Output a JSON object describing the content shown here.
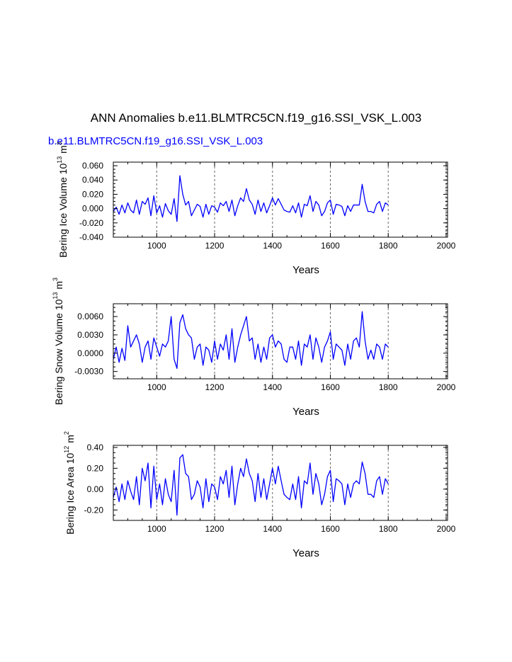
{
  "figure": {
    "title": "ANN Anomalies b.e11.BLMTRC5CN.f19_g16.SSI_VSK_L.003",
    "subtitle": "b.e11.BLMTRC5CN.f19_g16.SSI_VSK_L.003",
    "line_color": "#0000ff",
    "grid_color": "#666666",
    "reference_years": [
      1000,
      1200,
      1400,
      1600,
      1800,
      2000
    ]
  },
  "chart_data": [
    {
      "type": "line",
      "id": "ice-volume",
      "ylabel": "Bering Ice Volume 10",
      "ylabel_exp": "13",
      "ylabel_unit": "m",
      "ylabel_unit_exp": "3",
      "xlabel": "Years",
      "xlim": [
        850,
        2005
      ],
      "ylim": [
        -0.04,
        0.065
      ],
      "xticks": [
        1000,
        1200,
        1400,
        1600,
        1800,
        2000
      ],
      "xtick_labels": [
        "1000",
        "1200",
        "1400",
        "1600",
        "1800",
        "2000"
      ],
      "yticks": [
        -0.04,
        -0.02,
        0.0,
        0.02,
        0.04,
        0.06
      ],
      "ytick_labels": [
        "-0.040",
        "-0.020",
        "0.000",
        "0.020",
        "0.040",
        "0.060"
      ],
      "series": [
        {
          "name": "Bering Ice Volume",
          "x_start": 850,
          "x_step": 10,
          "values": [
            -0.004,
            0.002,
            -0.008,
            0.005,
            -0.006,
            0.008,
            -0.002,
            -0.006,
            0.012,
            -0.008,
            0.01,
            0.006,
            0.015,
            -0.01,
            0.018,
            -0.006,
            0.004,
            -0.012,
            0.007,
            -0.003,
            -0.008,
            0.014,
            -0.018,
            0.046,
            0.02,
            0.005,
            0.01,
            -0.01,
            -0.002,
            0.006,
            0.003,
            -0.012,
            0.006,
            -0.008,
            0.004,
            0.002,
            -0.005,
            0.008,
            0.004,
            0.01,
            -0.004,
            0.012,
            -0.01,
            0.004,
            0.015,
            0.01,
            0.028,
            0.012,
            0.006,
            -0.008,
            0.012,
            -0.004,
            0.008,
            -0.006,
            0.004,
            0.015,
            0.005,
            0.014,
            0.006,
            -0.002,
            -0.004,
            -0.005,
            0.004,
            -0.006,
            0.008,
            -0.012,
            0.006,
            0.004,
            0.018,
            -0.004,
            0.01,
            0.005,
            -0.01,
            -0.004,
            0.008,
            0.012,
            -0.008,
            0.006,
            0.005,
            0.003,
            -0.01,
            0.004,
            -0.004,
            0.005,
            0.005,
            0.005,
            0.034,
            0.01,
            -0.004,
            -0.004,
            -0.006,
            0.006,
            0.01,
            -0.004,
            0.008,
            0.005
          ]
        }
      ]
    },
    {
      "type": "line",
      "id": "snow-volume",
      "ylabel": "Bering Snow Volume 10",
      "ylabel_exp": "13",
      "ylabel_unit": "m",
      "ylabel_unit_exp": "3",
      "xlabel": "Years",
      "xlim": [
        850,
        2005
      ],
      "ylim": [
        -0.0042,
        0.0081
      ],
      "xticks": [
        1000,
        1200,
        1400,
        1600,
        1800,
        2000
      ],
      "xtick_labels": [
        "1000",
        "1200",
        "1400",
        "1600",
        "1800",
        "2000"
      ],
      "yticks": [
        -0.003,
        0.0,
        0.003,
        0.006
      ],
      "ytick_labels": [
        "-0.0030",
        "0.0000",
        "0.0030",
        "0.0060"
      ],
      "series": [
        {
          "name": "Bering Snow Volume",
          "x_start": 850,
          "x_step": 10,
          "values": [
            -0.001,
            0.001,
            -0.0015,
            0.0008,
            -0.0012,
            0.0045,
            0.001,
            0.002,
            0.003,
            0.0015,
            -0.0015,
            0.001,
            0.002,
            -0.001,
            0.0025,
            0.001,
            -0.0005,
            0.0015,
            0.001,
            0.002,
            0.006,
            -0.001,
            -0.0025,
            0.005,
            0.0063,
            0.004,
            0.003,
            0.0025,
            -0.001,
            0.001,
            0.0015,
            -0.002,
            0.001,
            0.0005,
            -0.0015,
            0.002,
            -0.001,
            0.0015,
            0.0005,
            0.003,
            -0.001,
            0.004,
            -0.0015,
            0.001,
            0.003,
            0.0045,
            0.006,
            0.002,
            0.0025,
            -0.001,
            0.0015,
            -0.0015,
            0.001,
            -0.001,
            0.0025,
            0.003,
            0.001,
            0.002,
            0.0015,
            -0.001,
            -0.0015,
            0.001,
            0.001,
            -0.001,
            0.002,
            -0.002,
            0.0015,
            0.001,
            0.003,
            -0.001,
            0.0025,
            0.001,
            -0.0015,
            0.001,
            0.002,
            0.0035,
            -0.001,
            0.0015,
            0.001,
            0.0005,
            -0.002,
            0.0015,
            -0.001,
            0.002,
            0.0025,
            0.001,
            0.0068,
            0.002,
            -0.001,
            0.0005,
            -0.001,
            0.0015,
            0.001,
            -0.001,
            0.0015,
            0.001
          ]
        }
      ]
    },
    {
      "type": "line",
      "id": "ice-area",
      "ylabel": "Bering Ice Area 10",
      "ylabel_exp": "12",
      "ylabel_unit": "m",
      "ylabel_unit_exp": "2",
      "xlabel": "Years",
      "xlim": [
        850,
        2005
      ],
      "ylim": [
        -0.3,
        0.42
      ],
      "xticks": [
        1000,
        1200,
        1400,
        1600,
        1800,
        2000
      ],
      "xtick_labels": [
        "1000",
        "1200",
        "1400",
        "1600",
        "1800",
        "2000"
      ],
      "yticks": [
        -0.2,
        0.0,
        0.2,
        0.4
      ],
      "ytick_labels": [
        "-0.20",
        "0.00",
        "0.20",
        "0.40"
      ],
      "series": [
        {
          "name": "Bering Ice Area",
          "x_start": 850,
          "x_step": 10,
          "values": [
            -0.08,
            0.02,
            -0.12,
            0.05,
            -0.1,
            0.08,
            -0.02,
            -0.1,
            0.12,
            -0.15,
            0.2,
            0.08,
            0.25,
            -0.18,
            0.22,
            -0.1,
            0.05,
            -0.15,
            0.1,
            -0.05,
            -0.12,
            0.18,
            -0.25,
            0.3,
            0.33,
            0.15,
            0.12,
            -0.1,
            -0.05,
            0.08,
            0.02,
            -0.18,
            0.1,
            -0.12,
            0.05,
            0.02,
            -0.1,
            0.12,
            0.05,
            0.18,
            -0.08,
            0.22,
            -0.15,
            0.05,
            0.2,
            0.12,
            0.29,
            0.15,
            0.08,
            -0.12,
            0.15,
            -0.08,
            0.1,
            -0.1,
            0.05,
            0.2,
            0.05,
            0.22,
            0.08,
            -0.05,
            -0.08,
            -0.1,
            0.05,
            -0.1,
            0.12,
            -0.18,
            0.08,
            0.05,
            0.25,
            -0.05,
            0.15,
            0.05,
            -0.15,
            -0.05,
            0.12,
            0.18,
            -0.12,
            0.1,
            0.08,
            0.05,
            -0.15,
            0.05,
            -0.08,
            0.05,
            0.08,
            0.05,
            0.26,
            0.15,
            -0.05,
            -0.05,
            -0.08,
            0.08,
            0.12,
            -0.05,
            0.1,
            0.05
          ]
        }
      ]
    }
  ]
}
